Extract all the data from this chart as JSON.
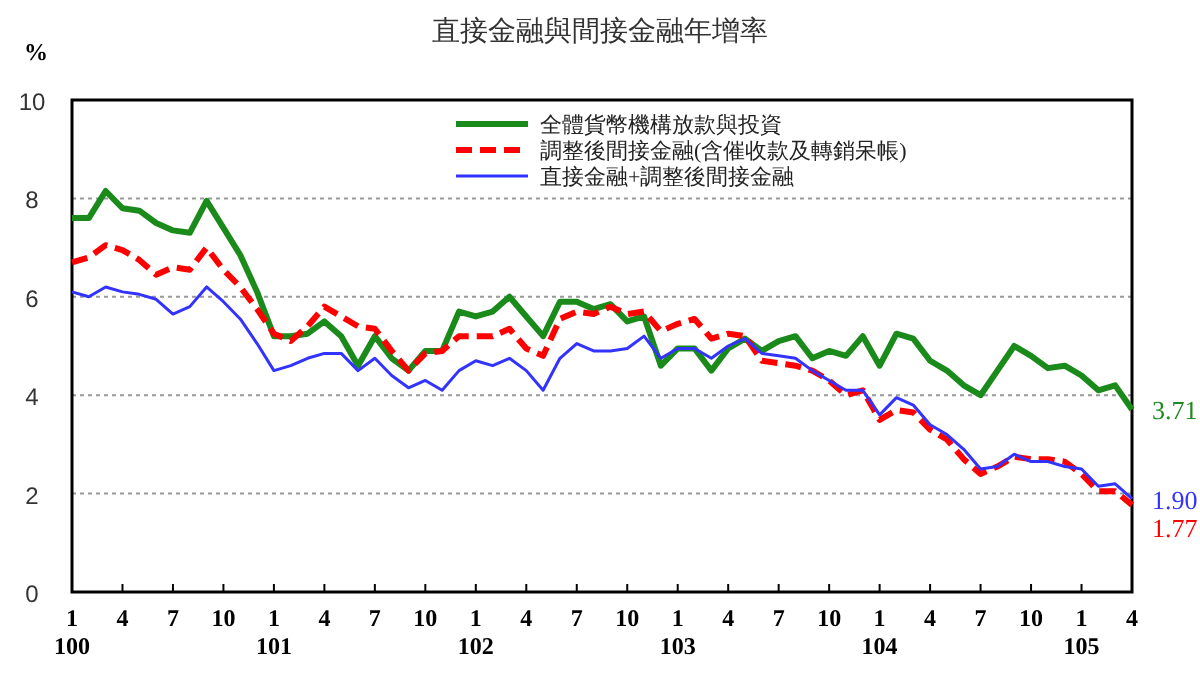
{
  "chart_data": {
    "type": "line",
    "title": "直接金融與間接金融年增率",
    "ylabel": "%",
    "categories": [
      "1\n100",
      null,
      null,
      "4",
      null,
      null,
      "7",
      null,
      null,
      "10",
      null,
      null,
      "1\n101",
      null,
      null,
      "4",
      null,
      null,
      "7",
      null,
      null,
      "10",
      null,
      null,
      "1\n102",
      null,
      null,
      "4",
      null,
      null,
      "7",
      null,
      null,
      "10",
      null,
      null,
      "1\n103",
      null,
      null,
      "4",
      null,
      null,
      "7",
      null,
      null,
      "10",
      null,
      null,
      "1\n104",
      null,
      null,
      "4",
      null,
      null,
      "7",
      null,
      null,
      "10",
      null,
      null,
      "1\n105",
      null,
      null,
      "4"
    ],
    "series": [
      {
        "name": "全體貨幣機構放款與投資",
        "color": "#1a8a1a",
        "line_style": "solid",
        "values": [
          7.6,
          7.6,
          8.15,
          7.8,
          7.75,
          7.5,
          7.35,
          7.3,
          7.95,
          7.4,
          6.85,
          6.1,
          5.2,
          5.2,
          5.25,
          5.5,
          5.2,
          4.6,
          5.2,
          4.75,
          4.5,
          4.9,
          4.9,
          5.7,
          5.6,
          5.7,
          6.0,
          5.6,
          5.2,
          5.9,
          5.9,
          5.75,
          5.85,
          5.5,
          5.6,
          4.6,
          4.95,
          4.95,
          4.5,
          4.95,
          5.15,
          4.9,
          5.1,
          5.2,
          4.75,
          4.9,
          4.8,
          5.2,
          4.6,
          5.25,
          5.15,
          4.7,
          4.5,
          4.2,
          4.0,
          4.5,
          5.0,
          4.8,
          4.55,
          4.6,
          4.4,
          4.1,
          4.2,
          3.71
        ],
        "value_labels": [
          null,
          null,
          null,
          null,
          null,
          null,
          null,
          null,
          null,
          null,
          null,
          null,
          null,
          null,
          null,
          null,
          null,
          null,
          null,
          null,
          null,
          null,
          null,
          null,
          null,
          null,
          null,
          null,
          null,
          null,
          null,
          null,
          null,
          null,
          null,
          null,
          null,
          null,
          null,
          null,
          null,
          null,
          null,
          null,
          null,
          null,
          null,
          null,
          null,
          null,
          null,
          null,
          null,
          null,
          null,
          null,
          null,
          null,
          null,
          null,
          null,
          null,
          null,
          "3.71"
        ]
      },
      {
        "name": "調整後間接金融(含催收款及轉銷呆帳)",
        "color": "#ff0000",
        "line_style": "dashed",
        "values": [
          6.7,
          6.8,
          7.05,
          6.95,
          6.75,
          6.45,
          6.6,
          6.55,
          7.0,
          6.55,
          6.2,
          5.75,
          5.25,
          5.1,
          5.4,
          5.8,
          5.6,
          5.4,
          5.35,
          4.9,
          4.5,
          4.85,
          4.9,
          5.2,
          5.2,
          5.2,
          5.35,
          4.95,
          4.8,
          5.55,
          5.7,
          5.65,
          5.8,
          5.65,
          5.7,
          5.3,
          5.45,
          5.55,
          5.15,
          5.25,
          5.2,
          4.7,
          4.65,
          4.6,
          4.5,
          4.3,
          4.0,
          4.1,
          3.5,
          3.7,
          3.65,
          3.3,
          3.1,
          2.7,
          2.4,
          2.55,
          2.75,
          2.7,
          2.7,
          2.65,
          2.4,
          2.05,
          2.05,
          1.77
        ],
        "value_labels": [
          null,
          null,
          null,
          null,
          null,
          null,
          null,
          null,
          null,
          null,
          null,
          null,
          null,
          null,
          null,
          null,
          null,
          null,
          null,
          null,
          null,
          null,
          null,
          null,
          null,
          null,
          null,
          null,
          null,
          null,
          null,
          null,
          null,
          null,
          null,
          null,
          null,
          null,
          null,
          null,
          null,
          null,
          null,
          null,
          null,
          null,
          null,
          null,
          null,
          null,
          null,
          null,
          null,
          null,
          null,
          null,
          null,
          null,
          null,
          null,
          null,
          null,
          null,
          "1.77"
        ]
      },
      {
        "name": "直接金融+調整後間接金融",
        "color": "#3333ff",
        "line_style": "solid",
        "values": [
          6.1,
          6.0,
          6.2,
          6.1,
          6.05,
          5.95,
          5.65,
          5.8,
          6.2,
          5.9,
          5.55,
          5.05,
          4.5,
          4.6,
          4.75,
          4.85,
          4.85,
          4.5,
          4.75,
          4.4,
          4.15,
          4.3,
          4.1,
          4.5,
          4.7,
          4.6,
          4.75,
          4.5,
          4.1,
          4.75,
          5.05,
          4.9,
          4.9,
          4.95,
          5.2,
          4.75,
          4.95,
          4.95,
          4.75,
          5.0,
          5.15,
          4.85,
          4.8,
          4.75,
          4.5,
          4.3,
          4.1,
          4.1,
          3.6,
          3.95,
          3.8,
          3.4,
          3.2,
          2.9,
          2.5,
          2.55,
          2.8,
          2.65,
          2.65,
          2.55,
          2.5,
          2.15,
          2.2,
          1.9
        ],
        "value_labels": [
          null,
          null,
          null,
          null,
          null,
          null,
          null,
          null,
          null,
          null,
          null,
          null,
          null,
          null,
          null,
          null,
          null,
          null,
          null,
          null,
          null,
          null,
          null,
          null,
          null,
          null,
          null,
          null,
          null,
          null,
          null,
          null,
          null,
          null,
          null,
          null,
          null,
          null,
          null,
          null,
          null,
          null,
          null,
          null,
          null,
          null,
          null,
          null,
          null,
          null,
          null,
          null,
          null,
          null,
          null,
          null,
          null,
          null,
          null,
          null,
          null,
          null,
          null,
          "1.90"
        ]
      }
    ],
    "ylim": [
      0,
      10
    ],
    "yticks": [
      0,
      2,
      4,
      6,
      8,
      10
    ],
    "grid": "y",
    "legend": "top right"
  }
}
